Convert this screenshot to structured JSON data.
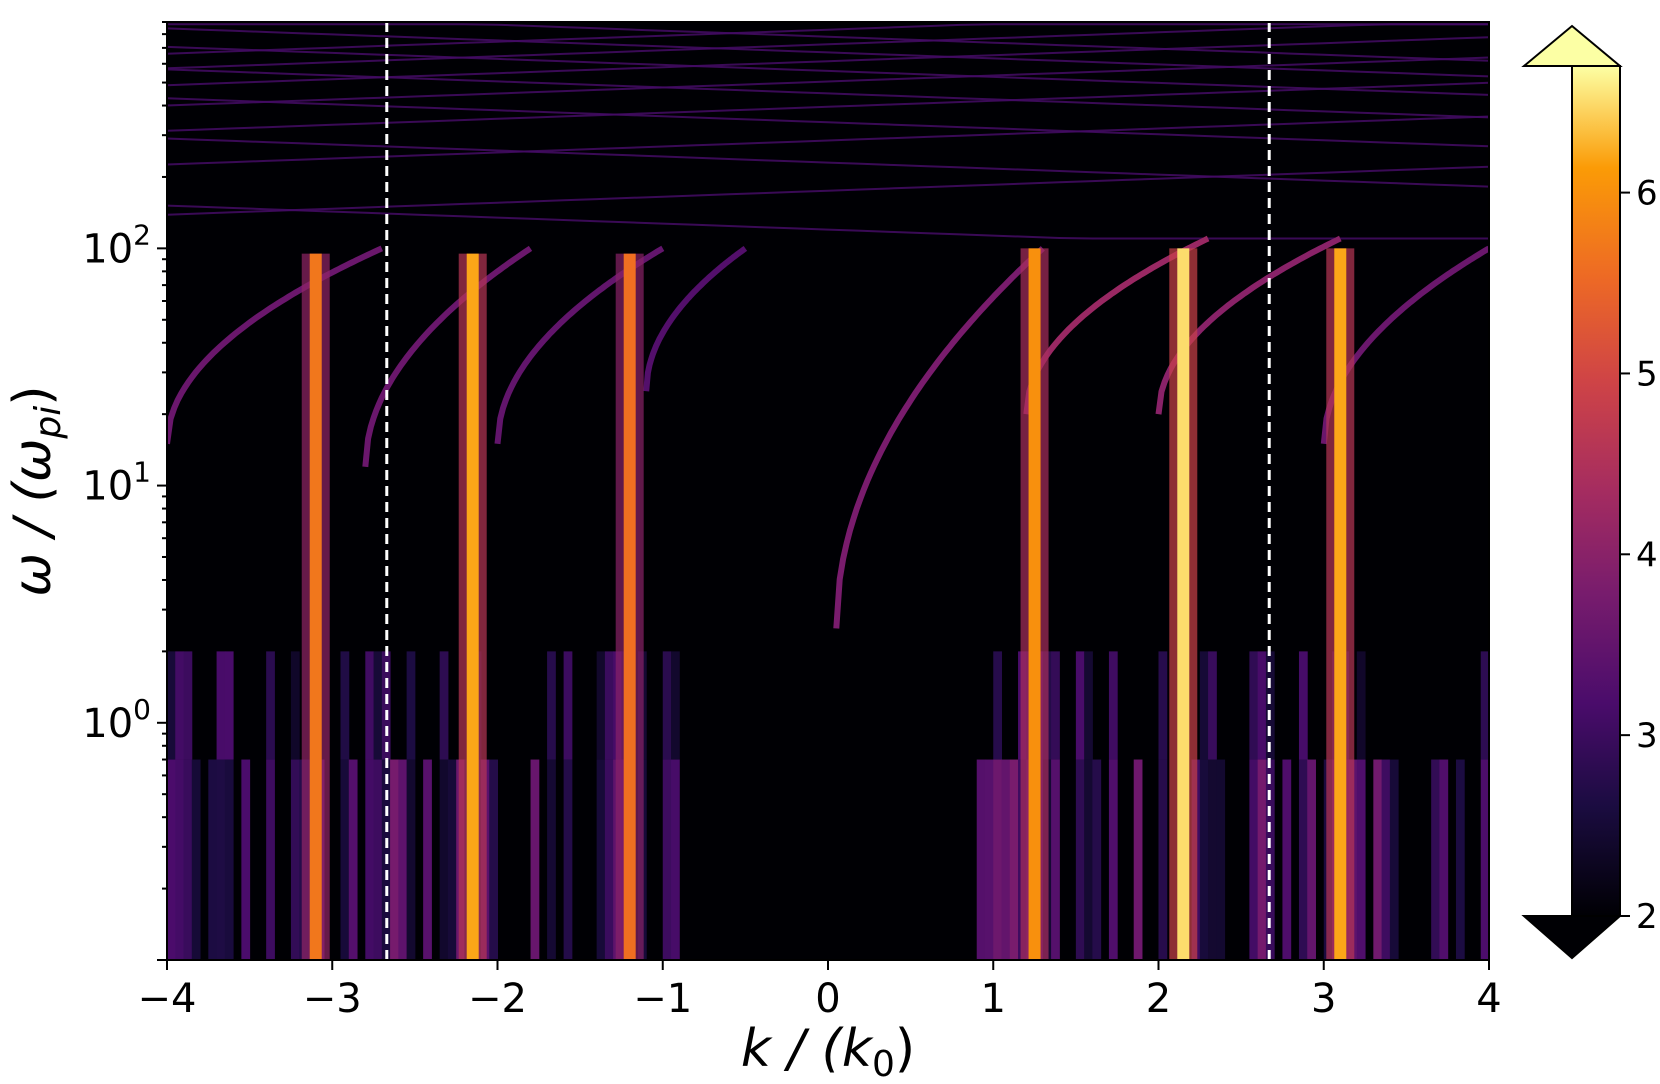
{
  "chart_data": {
    "type": "heatmap",
    "title": "",
    "xlabel": {
      "main": "k / (k",
      "sub": "0",
      "close": ")"
    },
    "ylabel": {
      "main": "ω / (ω",
      "sub": "pi",
      "close": ")"
    },
    "xlim": [
      -4,
      4
    ],
    "ylim": [
      0.1,
      900
    ],
    "yscale": "log",
    "x_ticks": [
      {
        "value": -4,
        "label": "−4"
      },
      {
        "value": -3,
        "label": "−3"
      },
      {
        "value": -2,
        "label": "−2"
      },
      {
        "value": -1,
        "label": "−1"
      },
      {
        "value": 0,
        "label": "0"
      },
      {
        "value": 1,
        "label": "1"
      },
      {
        "value": 2,
        "label": "2"
      },
      {
        "value": 3,
        "label": "3"
      },
      {
        "value": 4,
        "label": "4"
      }
    ],
    "y_ticks": [
      {
        "value": 1,
        "base": "10",
        "exp": "0"
      },
      {
        "value": 10,
        "base": "10",
        "exp": "1"
      },
      {
        "value": 100,
        "base": "10",
        "exp": "2"
      }
    ],
    "dashed_lines_x": [
      -2.67,
      2.67
    ],
    "colormap": "inferno",
    "colorbar": {
      "min": 2,
      "max": 6.7,
      "extend": "both",
      "ticks": [
        {
          "value": 2,
          "label": "2"
        },
        {
          "value": 3,
          "label": "3"
        },
        {
          "value": 4,
          "label": "4"
        },
        {
          "value": 5,
          "label": "5"
        },
        {
          "value": 6,
          "label": "6"
        }
      ]
    },
    "vertical_streaks": [
      {
        "k": -3.1,
        "intensity": 5.7,
        "top": 95
      },
      {
        "k": -2.15,
        "intensity": 6.2,
        "top": 95
      },
      {
        "k": -1.2,
        "intensity": 5.6,
        "top": 95
      },
      {
        "k": 1.25,
        "intensity": 6.0,
        "top": 100
      },
      {
        "k": 2.15,
        "intensity": 6.5,
        "top": 100
      },
      {
        "k": 3.1,
        "intensity": 6.2,
        "top": 100
      }
    ],
    "dispersion_branches": [
      {
        "k_start": -4.0,
        "k_end": -2.7,
        "w_start": 15,
        "w_end": 100,
        "intensity": 3.6
      },
      {
        "k_start": -2.8,
        "k_end": -1.8,
        "w_start": 12,
        "w_end": 100,
        "intensity": 3.6
      },
      {
        "k_start": -2.0,
        "k_end": -1.0,
        "w_start": 15,
        "w_end": 100,
        "intensity": 3.5
      },
      {
        "k_start": -1.1,
        "k_end": -0.5,
        "w_start": 25,
        "w_end": 100,
        "intensity": 3.3
      },
      {
        "k_start": 0.05,
        "k_end": 1.3,
        "w_start": 2.5,
        "w_end": 100,
        "intensity": 3.8
      },
      {
        "k_start": 1.2,
        "k_end": 2.3,
        "w_start": 20,
        "w_end": 110,
        "intensity": 4.2
      },
      {
        "k_start": 2.0,
        "k_end": 3.1,
        "w_start": 20,
        "w_end": 110,
        "intensity": 4.0
      },
      {
        "k_start": 3.0,
        "k_end": 4.0,
        "w_start": 15,
        "w_end": 100,
        "intensity": 3.6
      }
    ]
  }
}
